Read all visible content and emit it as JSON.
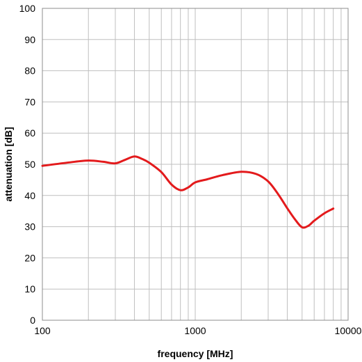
{
  "chart_data": {
    "type": "line",
    "title": "",
    "xlabel": "frequency [MHz]",
    "ylabel": "attenuation [dB]",
    "xscale": "log",
    "xlim": [
      100,
      10000
    ],
    "ylim": [
      0,
      100
    ],
    "grid": true,
    "legend": "none",
    "x_tick_labels": [
      "100",
      "1000",
      "10000"
    ],
    "y_tick_labels": [
      "0",
      "10",
      "20",
      "30",
      "40",
      "50",
      "60",
      "70",
      "80",
      "90",
      "100"
    ],
    "series": [
      {
        "color": "#e31a1c",
        "x": [
          100,
          150,
          200,
          250,
          300,
          350,
          400,
          450,
          500,
          600,
          700,
          800,
          900,
          1000,
          1200,
          1500,
          2000,
          2500,
          3000,
          3500,
          4000,
          4500,
          5000,
          5500,
          6000,
          7000,
          8000
        ],
        "y": [
          49.5,
          50.6,
          51.2,
          50.8,
          50.3,
          51.5,
          52.5,
          51.7,
          50.5,
          47.5,
          43.5,
          41.7,
          42.6,
          44.2,
          45.2,
          46.5,
          47.6,
          46.9,
          44.5,
          40.3,
          35.9,
          32.3,
          29.8,
          30.3,
          31.9,
          34.3,
          35.8
        ]
      }
    ]
  }
}
